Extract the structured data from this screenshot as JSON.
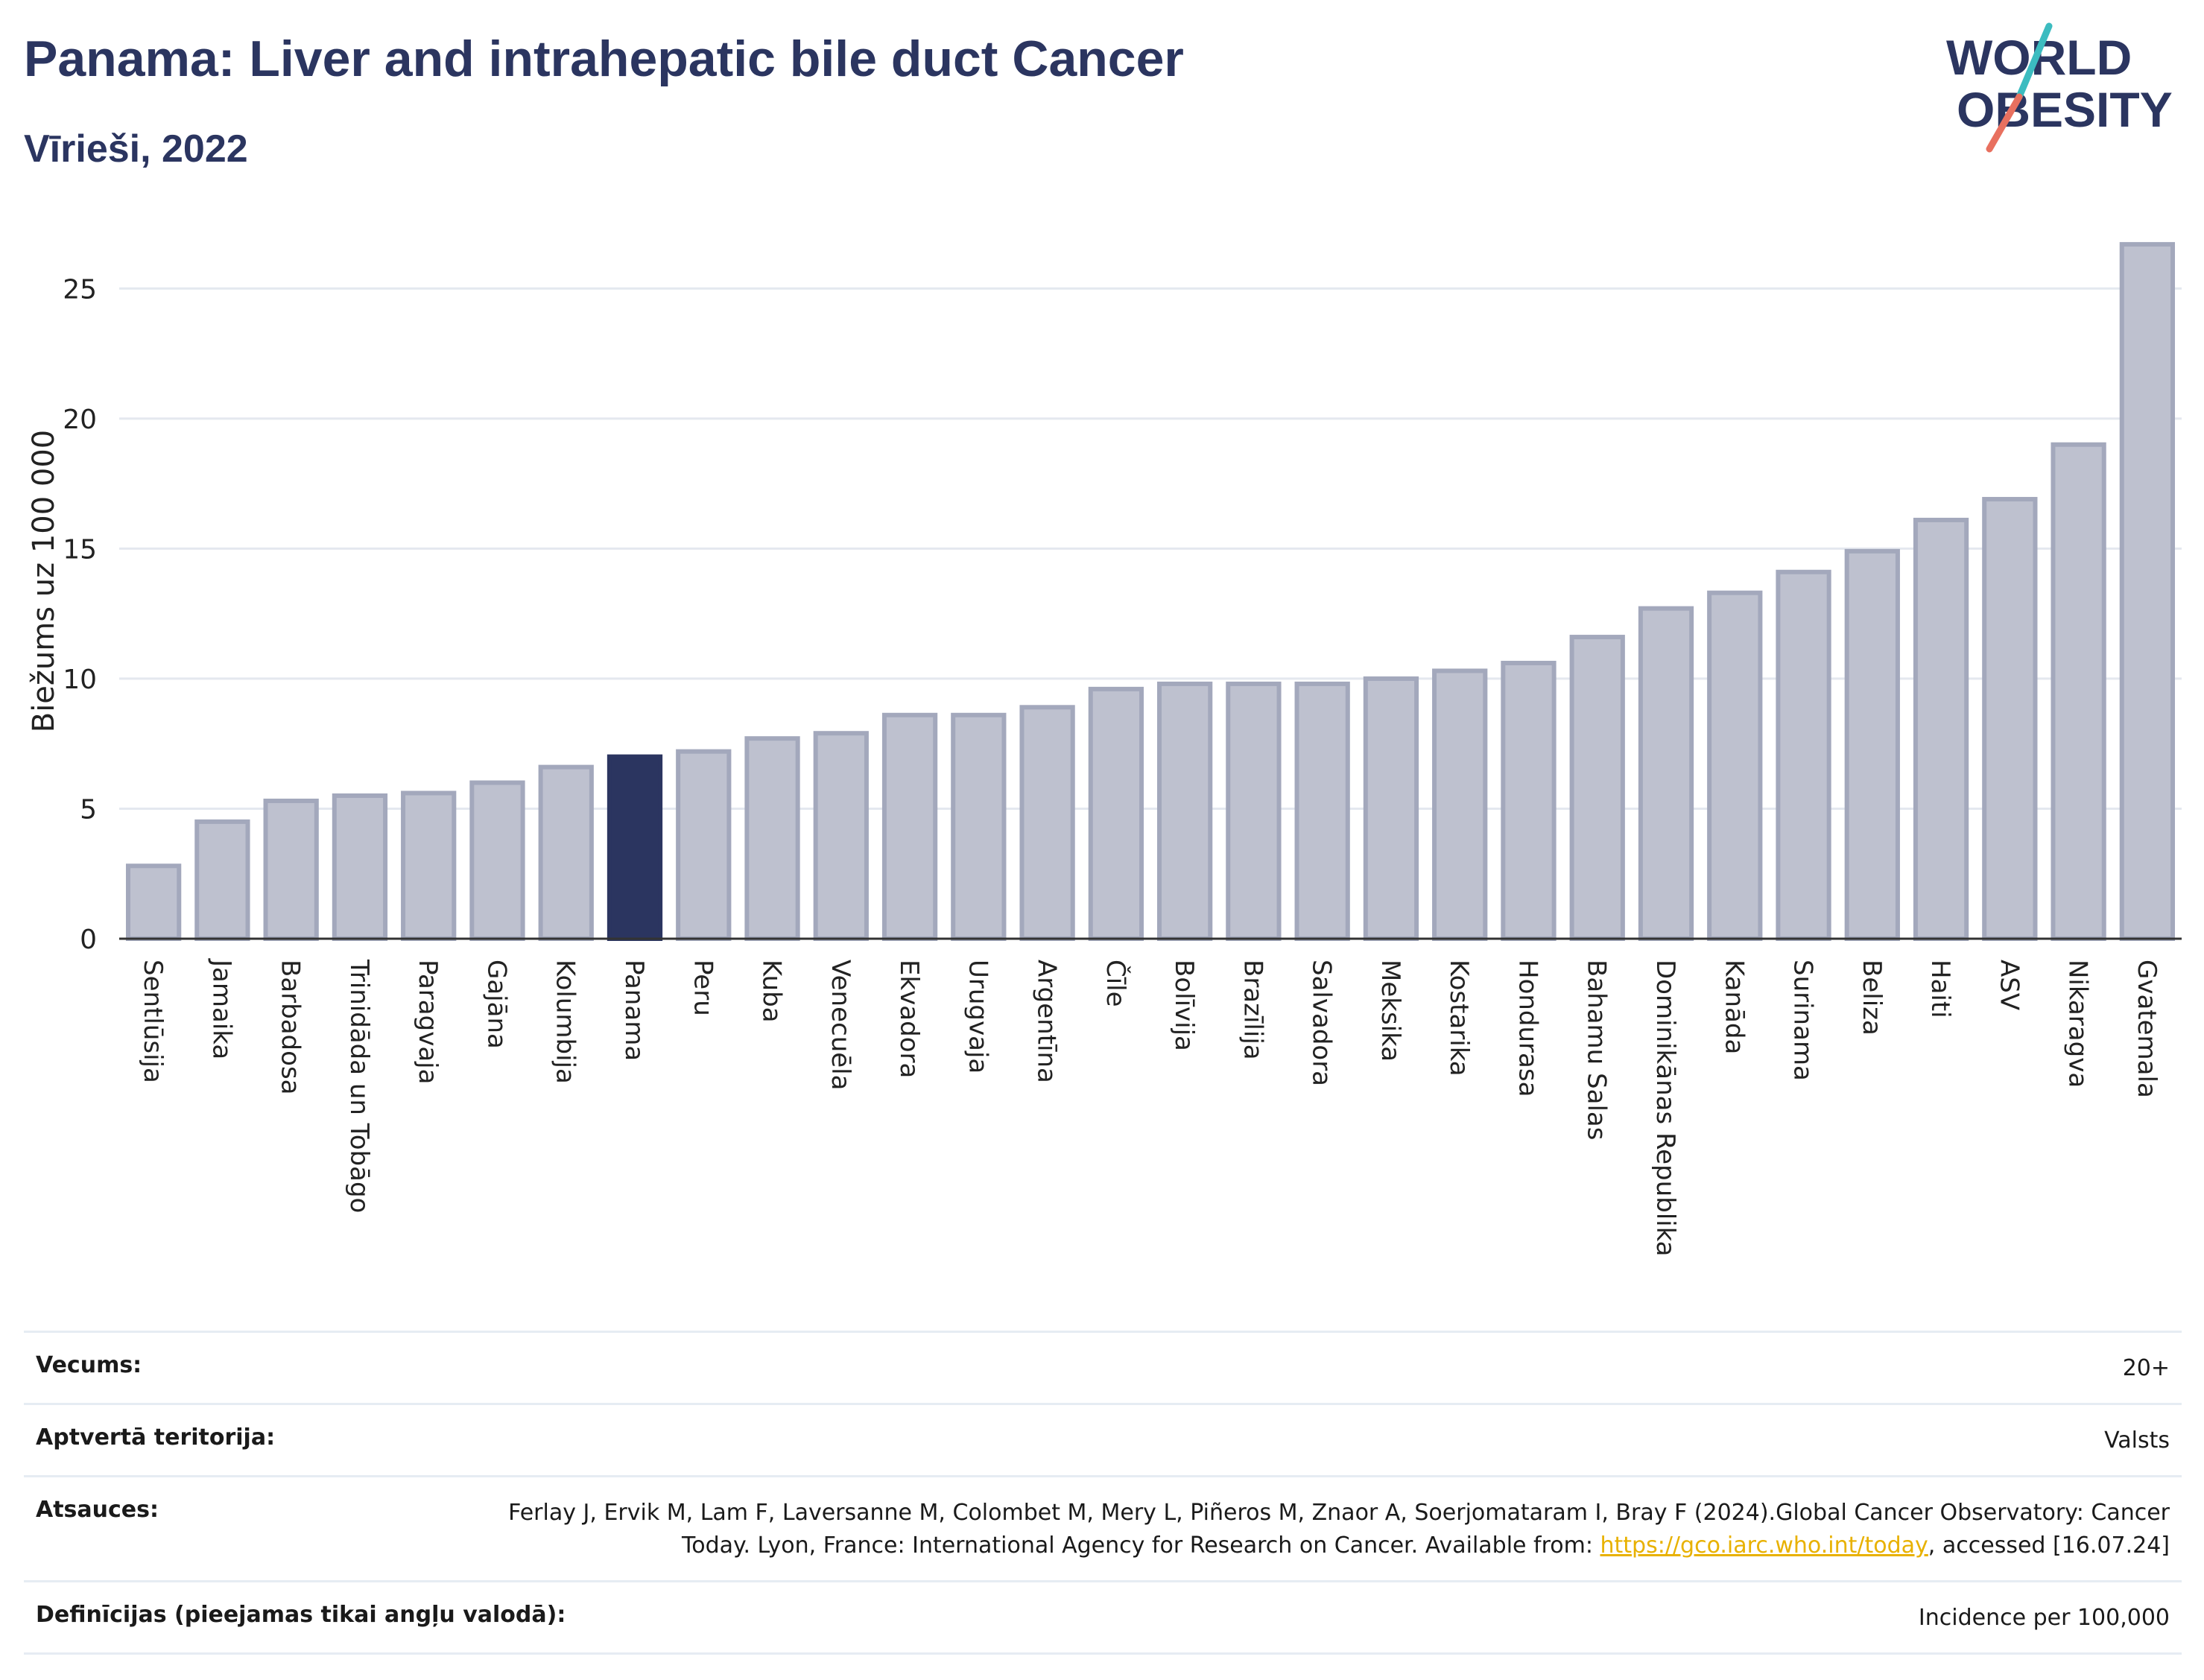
{
  "header": {
    "title": "Panama: Liver and intrahepatic bile duct Cancer",
    "subtitle": "Vīrieši, 2022"
  },
  "logo": {
    "line1": "WORLD",
    "line2": "OBESITY",
    "slash_colors": [
      "#e8705f",
      "#3cbcc0"
    ],
    "text_color": "#2b3560"
  },
  "chart_data": {
    "type": "bar",
    "ylabel": "Biežums uz 100 000",
    "ylim": [
      0,
      27.5
    ],
    "yticks": [
      0,
      5,
      10,
      15,
      20,
      25
    ],
    "grid": true,
    "highlight": "Panama",
    "colors": {
      "bar": "#bec1cf",
      "bar_edge": "#a3a8bc",
      "highlight": "#2b3560"
    },
    "categories": [
      "Sentlūsija",
      "Jamaika",
      "Barbadosa",
      "Trinidāda un Tobāgo",
      "Paragvaja",
      "Gajāna",
      "Kolumbija",
      "Panama",
      "Peru",
      "Kuba",
      "Venecuēla",
      "Ekvadora",
      "Urugvaja",
      "Argentīna",
      "Čīle",
      "Bolīvija",
      "Brazīlija",
      "Salvadora",
      "Meksika",
      "Kostarika",
      "Hondurasa",
      "Bahamu Salas",
      "Dominikānas Republika",
      "Kanāda",
      "Surinama",
      "Beliza",
      "Haiti",
      "ASV",
      "Nikaragva",
      "Gvatemala"
    ],
    "values": [
      2.8,
      4.5,
      5.3,
      5.5,
      5.6,
      6.0,
      6.6,
      7.0,
      7.2,
      7.7,
      7.9,
      8.6,
      8.6,
      8.9,
      9.6,
      9.8,
      9.8,
      9.8,
      10.0,
      10.3,
      10.6,
      11.6,
      12.7,
      13.3,
      14.1,
      14.9,
      16.1,
      16.9,
      19.0,
      26.7
    ]
  },
  "info": [
    {
      "label": "Vecums:",
      "value": "20+"
    },
    {
      "label": "Aptvertā teritorija:",
      "value": "Valsts"
    },
    {
      "label": "Atsauces:",
      "value_before": "Ferlay J, Ervik M, Lam F, Laversanne M, Colombet M, Mery L, Piñeros M, Znaor A, Soerjomataram I, Bray F (2024).Global Cancer Observatory: Cancer Today. Lyon, France: International Agency for Research on Cancer. Available from: ",
      "link": "https://gco.iarc.who.int/today",
      "value_after": ", accessed [16.07.24]"
    },
    {
      "label": "Definīcijas (pieejamas tikai angļu valodā):",
      "value": "Incidence per 100,000"
    }
  ]
}
